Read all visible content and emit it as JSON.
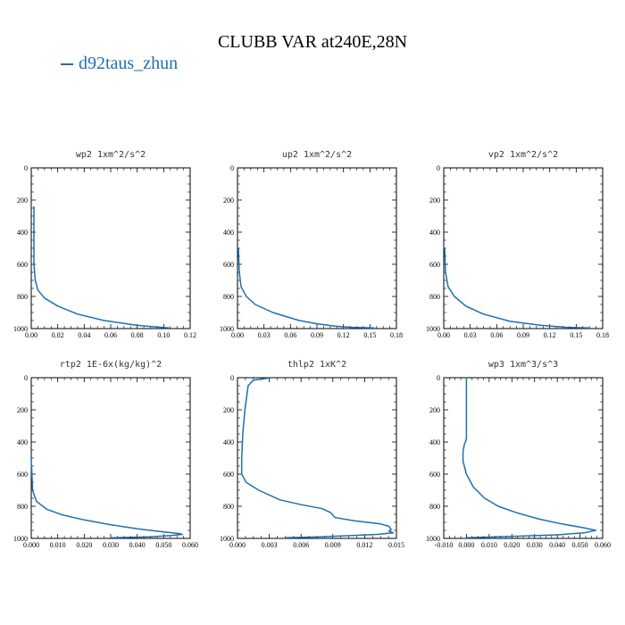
{
  "title": "CLUBB VAR at240E,28N",
  "legend": {
    "label": "d92taus_zhun",
    "color": "#1f6fb0"
  },
  "chart_data": [
    {
      "type": "line",
      "title": "wp2  1xm^2/s^2",
      "xlim": [
        0,
        0.12
      ],
      "xticks": [
        "0.00",
        "0.02",
        "0.04",
        "0.06",
        "0.08",
        "0.10",
        "0.12"
      ],
      "ylim": [
        0,
        1000
      ],
      "yticks": [
        "0",
        "200",
        "400",
        "600",
        "800",
        "1000"
      ],
      "series": [
        {
          "points": [
            [
              0.002,
              240
            ],
            [
              0.002,
              400
            ],
            [
              0.002,
              600
            ],
            [
              0.003,
              700
            ],
            [
              0.005,
              760
            ],
            [
              0.01,
              810
            ],
            [
              0.02,
              860
            ],
            [
              0.035,
              910
            ],
            [
              0.055,
              950
            ],
            [
              0.08,
              980
            ],
            [
              0.098,
              992
            ],
            [
              0.104,
              996
            ]
          ]
        }
      ]
    },
    {
      "type": "line",
      "title": "up2  1xm^2/s^2",
      "xlim": [
        0,
        0.18
      ],
      "xticks": [
        "0.00",
        "0.03",
        "0.06",
        "0.09",
        "0.12",
        "0.15",
        "0.18"
      ],
      "ylim": [
        0,
        1000
      ],
      "yticks": [
        "0",
        "200",
        "400",
        "600",
        "800",
        "1000"
      ],
      "series": [
        {
          "points": [
            [
              0.001,
              500
            ],
            [
              0.002,
              650
            ],
            [
              0.004,
              740
            ],
            [
              0.01,
              800
            ],
            [
              0.02,
              850
            ],
            [
              0.04,
              900
            ],
            [
              0.07,
              950
            ],
            [
              0.09,
              970
            ],
            [
              0.11,
              985
            ],
            [
              0.13,
              992
            ],
            [
              0.155,
              996
            ]
          ]
        }
      ]
    },
    {
      "type": "line",
      "title": "vp2  1xm^2/s^2",
      "xlim": [
        0,
        0.18
      ],
      "xticks": [
        "0.00",
        "0.03",
        "0.06",
        "0.09",
        "0.12",
        "0.15",
        "0.18"
      ],
      "ylim": [
        0,
        1000
      ],
      "yticks": [
        "0",
        "200",
        "400",
        "600",
        "800",
        "1000"
      ],
      "series": [
        {
          "points": [
            [
              0.001,
              500
            ],
            [
              0.002,
              650
            ],
            [
              0.005,
              740
            ],
            [
              0.012,
              800
            ],
            [
              0.025,
              860
            ],
            [
              0.045,
              910
            ],
            [
              0.075,
              955
            ],
            [
              0.11,
              980
            ],
            [
              0.14,
              992
            ],
            [
              0.165,
              996
            ]
          ]
        }
      ]
    },
    {
      "type": "line",
      "title": "rtp2  1E-6x(kg/kg)^2",
      "xlim": [
        0,
        0.06
      ],
      "xticks": [
        "0.000",
        "0.010",
        "0.020",
        "0.030",
        "0.040",
        "0.050",
        "0.060"
      ],
      "ylim": [
        0,
        1000
      ],
      "yticks": [
        "0",
        "200",
        "400",
        "600",
        "800",
        "1000"
      ],
      "series": [
        {
          "points": [
            [
              0.0,
              500
            ],
            [
              0.0005,
              700
            ],
            [
              0.002,
              770
            ],
            [
              0.006,
              820
            ],
            [
              0.012,
              855
            ],
            [
              0.02,
              885
            ],
            [
              0.03,
              915
            ],
            [
              0.04,
              940
            ],
            [
              0.05,
              960
            ],
            [
              0.056,
              970
            ],
            [
              0.057,
              975
            ],
            [
              0.053,
              982
            ],
            [
              0.045,
              990
            ],
            [
              0.03,
              996
            ]
          ]
        }
      ]
    },
    {
      "type": "line",
      "title": "thlp2  1xK^2",
      "xlim": [
        0,
        0.015
      ],
      "xticks": [
        "0.000",
        "0.003",
        "0.006",
        "0.009",
        "0.012",
        "0.015"
      ],
      "ylim": [
        0,
        1000
      ],
      "yticks": [
        "0",
        "200",
        "400",
        "600",
        "800",
        "1000"
      ],
      "series": [
        {
          "points": [
            [
              0.003,
              2
            ],
            [
              0.0015,
              15
            ],
            [
              0.001,
              50
            ],
            [
              0.0009,
              100
            ],
            [
              0.0007,
              200
            ],
            [
              0.0005,
              350
            ],
            [
              0.0004,
              500
            ],
            [
              0.0004,
              600
            ],
            [
              0.0008,
              650
            ],
            [
              0.002,
              700
            ],
            [
              0.004,
              760
            ],
            [
              0.006,
              790
            ],
            [
              0.008,
              815
            ],
            [
              0.0088,
              840
            ],
            [
              0.0092,
              870
            ],
            [
              0.011,
              890
            ],
            [
              0.0135,
              910
            ],
            [
              0.0143,
              925
            ],
            [
              0.0145,
              945
            ],
            [
              0.0143,
              955
            ],
            [
              0.0147,
              965
            ],
            [
              0.0132,
              975
            ],
            [
              0.008,
              990
            ],
            [
              0.0045,
              996
            ]
          ]
        }
      ]
    },
    {
      "type": "line",
      "title": "wp3  1xm^3/s^3",
      "xlim": [
        -0.01,
        0.06
      ],
      "xticks": [
        "-0.010",
        "0.000",
        "0.010",
        "0.020",
        "0.030",
        "0.040",
        "0.050",
        "0.060"
      ],
      "ylim": [
        0,
        1000
      ],
      "yticks": [
        "0",
        "200",
        "400",
        "600",
        "800",
        "1000"
      ],
      "series": [
        {
          "points": [
            [
              0.0,
              0
            ],
            [
              0.0,
              100
            ],
            [
              0.0,
              200
            ],
            [
              0.0,
              300
            ],
            [
              0.0,
              380
            ],
            [
              -0.001,
              420
            ],
            [
              -0.0015,
              460
            ],
            [
              -0.0015,
              520
            ],
            [
              0.0,
              600
            ],
            [
              0.003,
              680
            ],
            [
              0.008,
              750
            ],
            [
              0.014,
              800
            ],
            [
              0.022,
              840
            ],
            [
              0.032,
              880
            ],
            [
              0.042,
              910
            ],
            [
              0.052,
              935
            ],
            [
              0.057,
              950
            ],
            [
              0.052,
              965
            ],
            [
              0.04,
              978
            ],
            [
              0.02,
              988
            ],
            [
              0.0,
              996
            ]
          ]
        }
      ]
    }
  ]
}
